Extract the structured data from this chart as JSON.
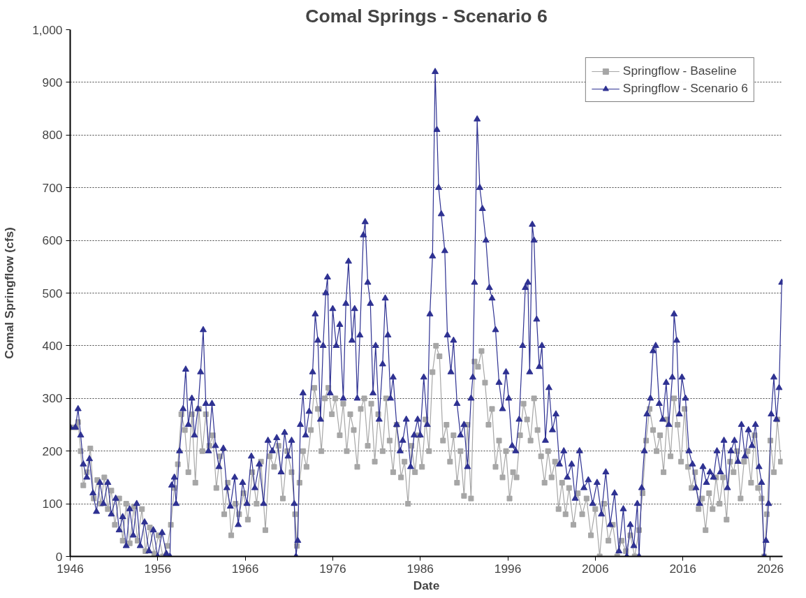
{
  "chart_data": {
    "type": "line",
    "title": "Comal Springs - Scenario 6",
    "xlabel": "Date",
    "ylabel": "Comal Springflow (cfs)",
    "xlim": [
      1946,
      2027.4
    ],
    "xticks": [
      1946,
      1956,
      1966,
      1976,
      1986,
      1996,
      2006,
      2016,
      2026
    ],
    "ylim": [
      0,
      1000
    ],
    "yticks": [
      0,
      100,
      200,
      300,
      400,
      500,
      600,
      700,
      800,
      900,
      {
        "value": 1000,
        "label": "1,000"
      }
    ],
    "grid": "y",
    "legend": "top right",
    "line_style": "solid",
    "series": [
      {
        "name": "Springflow - Baseline",
        "color": "#a6a6a6",
        "marker": "square",
        "x": [
          1946.0,
          1946.6,
          1946.9,
          1947.2,
          1947.5,
          1947.9,
          1948.3,
          1948.7,
          1949.1,
          1949.5,
          1949.9,
          1950.3,
          1950.7,
          1951.1,
          1951.6,
          1952.0,
          1952.4,
          1952.8,
          1953.3,
          1953.7,
          1954.2,
          1954.6,
          1955.1,
          1955.6,
          1956.1,
          1956.6,
          1957.1,
          1957.5,
          1957.9,
          1958.3,
          1958.7,
          1959.1,
          1959.5,
          1959.9,
          1960.3,
          1960.7,
          1961.1,
          1961.5,
          1961.9,
          1962.3,
          1962.7,
          1963.1,
          1963.6,
          1964.0,
          1964.4,
          1964.9,
          1965.3,
          1965.8,
          1966.3,
          1966.8,
          1967.3,
          1967.8,
          1968.3,
          1968.8,
          1969.3,
          1969.8,
          1970.3,
          1970.8,
          1971.3,
          1971.7,
          1971.9,
          1972.2,
          1972.6,
          1973.0,
          1973.5,
          1973.9,
          1974.3,
          1974.7,
          1975.1,
          1975.5,
          1975.9,
          1976.3,
          1976.8,
          1977.2,
          1977.6,
          1978.0,
          1978.4,
          1978.8,
          1979.2,
          1979.6,
          1980.0,
          1980.4,
          1980.8,
          1981.2,
          1981.7,
          1982.1,
          1982.5,
          1982.9,
          1983.3,
          1983.8,
          1984.2,
          1984.6,
          1985.0,
          1985.4,
          1985.8,
          1986.2,
          1986.6,
          1987.0,
          1987.4,
          1987.8,
          1988.2,
          1988.6,
          1989.0,
          1989.4,
          1989.8,
          1990.2,
          1990.6,
          1991.0,
          1991.4,
          1991.8,
          1992.2,
          1992.6,
          1993.0,
          1993.4,
          1993.8,
          1994.2,
          1994.6,
          1995.0,
          1995.4,
          1995.8,
          1996.2,
          1996.6,
          1997.0,
          1997.4,
          1997.8,
          1998.2,
          1998.6,
          1999.0,
          1999.4,
          1999.8,
          2000.2,
          2000.6,
          2001.0,
          2001.4,
          2001.8,
          2002.2,
          2002.6,
          2003.0,
          2003.5,
          2004.0,
          2004.5,
          2005.0,
          2005.5,
          2006.0,
          2006.5,
          2007.0,
          2007.5,
          2008.0,
          2008.5,
          2009.0,
          2009.5,
          2010.0,
          2010.5,
          2011.0,
          2011.4,
          2011.8,
          2012.2,
          2012.6,
          2013.0,
          2013.4,
          2013.8,
          2014.2,
          2014.6,
          2015.0,
          2015.4,
          2015.8,
          2016.2,
          2016.6,
          2017.0,
          2017.4,
          2017.8,
          2018.2,
          2018.6,
          2019.0,
          2019.4,
          2019.8,
          2020.2,
          2020.6,
          2021.0,
          2021.4,
          2021.8,
          2022.2,
          2022.6,
          2023.0,
          2023.4,
          2023.8,
          2024.2,
          2024.6,
          2025.0,
          2025.3,
          2025.6,
          2026.0,
          2026.4,
          2026.8,
          2027.2
        ],
        "values": [
          245,
          245,
          255,
          200,
          135,
          160,
          205,
          110,
          145,
          100,
          150,
          90,
          125,
          60,
          110,
          30,
          100,
          25,
          95,
          30,
          90,
          10,
          55,
          5,
          40,
          0,
          20,
          60,
          130,
          175,
          270,
          240,
          160,
          270,
          140,
          280,
          200,
          270,
          210,
          230,
          130,
          190,
          80,
          140,
          40,
          100,
          80,
          120,
          70,
          160,
          100,
          180,
          50,
          190,
          170,
          210,
          110,
          200,
          160,
          80,
          20,
          140,
          200,
          170,
          240,
          320,
          280,
          200,
          300,
          320,
          270,
          300,
          230,
          290,
          200,
          270,
          240,
          170,
          280,
          300,
          210,
          290,
          180,
          270,
          200,
          300,
          220,
          160,
          250,
          150,
          180,
          100,
          210,
          160,
          230,
          170,
          260,
          200,
          350,
          400,
          380,
          220,
          250,
          180,
          230,
          140,
          200,
          115,
          250,
          110,
          370,
          360,
          390,
          330,
          250,
          280,
          170,
          220,
          150,
          200,
          110,
          160,
          150,
          230,
          290,
          260,
          220,
          300,
          240,
          190,
          140,
          200,
          150,
          180,
          90,
          140,
          80,
          130,
          60,
          120,
          80,
          110,
          40,
          90,
          0,
          100,
          30,
          60,
          0,
          30,
          10,
          40,
          0,
          50,
          120,
          220,
          280,
          240,
          200,
          230,
          160,
          260,
          190,
          300,
          250,
          180,
          280,
          170,
          130,
          160,
          90,
          110,
          50,
          120,
          90,
          150,
          100,
          150,
          70,
          180,
          160,
          200,
          110,
          180,
          200,
          140,
          230,
          130,
          110,
          0,
          80,
          220,
          160,
          260,
          180
        ]
      },
      {
        "name": "Springflow - Scenario 6",
        "color": "#2e3192",
        "marker": "triangle",
        "x": [
          1946.0,
          1946.6,
          1946.9,
          1947.2,
          1947.5,
          1947.9,
          1948.2,
          1948.6,
          1949.0,
          1949.4,
          1949.8,
          1950.3,
          1950.7,
          1951.2,
          1951.6,
          1952.0,
          1952.4,
          1952.8,
          1953.2,
          1953.6,
          1954.0,
          1954.5,
          1955.0,
          1955.5,
          1956.0,
          1956.5,
          1957.0,
          1957.4,
          1957.6,
          1957.9,
          1958.1,
          1958.5,
          1958.9,
          1959.2,
          1959.5,
          1959.9,
          1960.2,
          1960.6,
          1960.9,
          1961.2,
          1961.5,
          1961.8,
          1962.2,
          1962.6,
          1963.0,
          1963.5,
          1963.9,
          1964.3,
          1964.8,
          1965.2,
          1965.7,
          1966.2,
          1966.7,
          1967.1,
          1967.6,
          1968.1,
          1968.6,
          1969.1,
          1969.6,
          1970.1,
          1970.5,
          1970.9,
          1971.3,
          1971.6,
          1971.8,
          1972.0,
          1972.3,
          1972.6,
          1972.9,
          1973.3,
          1973.7,
          1974.0,
          1974.3,
          1974.6,
          1974.9,
          1975.2,
          1975.4,
          1975.7,
          1976.0,
          1976.4,
          1976.8,
          1977.2,
          1977.5,
          1977.8,
          1978.2,
          1978.5,
          1978.8,
          1979.1,
          1979.5,
          1979.7,
          1980.0,
          1980.3,
          1980.6,
          1980.9,
          1981.3,
          1981.7,
          1982.0,
          1982.3,
          1982.6,
          1982.9,
          1983.3,
          1983.7,
          1984.0,
          1984.4,
          1984.9,
          1985.3,
          1985.7,
          1986.0,
          1986.4,
          1986.8,
          1987.1,
          1987.4,
          1987.7,
          1987.9,
          1988.1,
          1988.4,
          1988.8,
          1989.1,
          1989.5,
          1989.8,
          1990.2,
          1990.6,
          1991.0,
          1991.4,
          1991.8,
          1992.0,
          1992.2,
          1992.5,
          1992.8,
          1993.1,
          1993.5,
          1993.9,
          1994.2,
          1994.6,
          1995.0,
          1995.4,
          1995.8,
          1996.1,
          1996.5,
          1996.9,
          1997.3,
          1997.7,
          1998.0,
          1998.3,
          1998.5,
          1998.8,
          1999.0,
          1999.3,
          1999.6,
          1999.9,
          2000.3,
          2000.7,
          2001.1,
          2001.5,
          2001.9,
          2002.4,
          2002.8,
          2003.3,
          2003.7,
          2004.2,
          2004.7,
          2005.2,
          2005.7,
          2006.2,
          2006.7,
          2007.2,
          2007.7,
          2008.2,
          2008.7,
          2009.2,
          2009.6,
          2010.0,
          2010.4,
          2010.8,
          2011.0,
          2011.3,
          2011.6,
          2011.9,
          2012.3,
          2012.6,
          2012.9,
          2013.3,
          2013.7,
          2014.1,
          2014.4,
          2014.8,
          2015.0,
          2015.3,
          2015.6,
          2015.9,
          2016.3,
          2016.7,
          2017.1,
          2017.5,
          2017.9,
          2018.3,
          2018.7,
          2019.1,
          2019.5,
          2019.9,
          2020.3,
          2020.7,
          2021.1,
          2021.5,
          2021.9,
          2022.3,
          2022.7,
          2023.1,
          2023.5,
          2023.9,
          2024.3,
          2024.7,
          2025.0,
          2025.3,
          2025.5,
          2025.8,
          2026.1,
          2026.4,
          2026.7,
          2027.0,
          2027.3
        ],
        "values": [
          245,
          245,
          280,
          230,
          175,
          150,
          185,
          120,
          85,
          140,
          100,
          140,
          80,
          110,
          50,
          75,
          20,
          90,
          40,
          100,
          20,
          65,
          10,
          50,
          0,
          45,
          5,
          0,
          135,
          150,
          100,
          200,
          280,
          355,
          250,
          300,
          230,
          280,
          350,
          430,
          290,
          200,
          290,
          210,
          170,
          205,
          130,
          95,
          150,
          60,
          140,
          100,
          190,
          130,
          175,
          100,
          220,
          200,
          225,
          160,
          235,
          190,
          220,
          100,
          0,
          30,
          250,
          310,
          230,
          275,
          350,
          460,
          410,
          260,
          400,
          500,
          530,
          310,
          470,
          400,
          440,
          300,
          480,
          560,
          410,
          470,
          300,
          420,
          610,
          635,
          520,
          480,
          310,
          400,
          260,
          365,
          490,
          420,
          300,
          340,
          250,
          200,
          220,
          260,
          170,
          230,
          260,
          230,
          340,
          250,
          460,
          570,
          920,
          810,
          700,
          650,
          580,
          420,
          350,
          410,
          290,
          230,
          250,
          170,
          300,
          340,
          520,
          830,
          700,
          660,
          600,
          510,
          490,
          430,
          330,
          280,
          350,
          300,
          210,
          200,
          260,
          400,
          510,
          520,
          350,
          630,
          600,
          450,
          360,
          400,
          220,
          320,
          240,
          270,
          175,
          200,
          150,
          175,
          110,
          200,
          130,
          145,
          100,
          140,
          80,
          160,
          60,
          120,
          10,
          90,
          0,
          60,
          20,
          100,
          0,
          130,
          200,
          270,
          300,
          390,
          400,
          290,
          260,
          330,
          250,
          340,
          460,
          410,
          270,
          340,
          300,
          200,
          175,
          130,
          100,
          170,
          140,
          160,
          150,
          200,
          160,
          220,
          130,
          200,
          220,
          180,
          250,
          190,
          240,
          210,
          250,
          170,
          140,
          0,
          30,
          100,
          270,
          340,
          260,
          320,
          520
        ]
      }
    ]
  }
}
